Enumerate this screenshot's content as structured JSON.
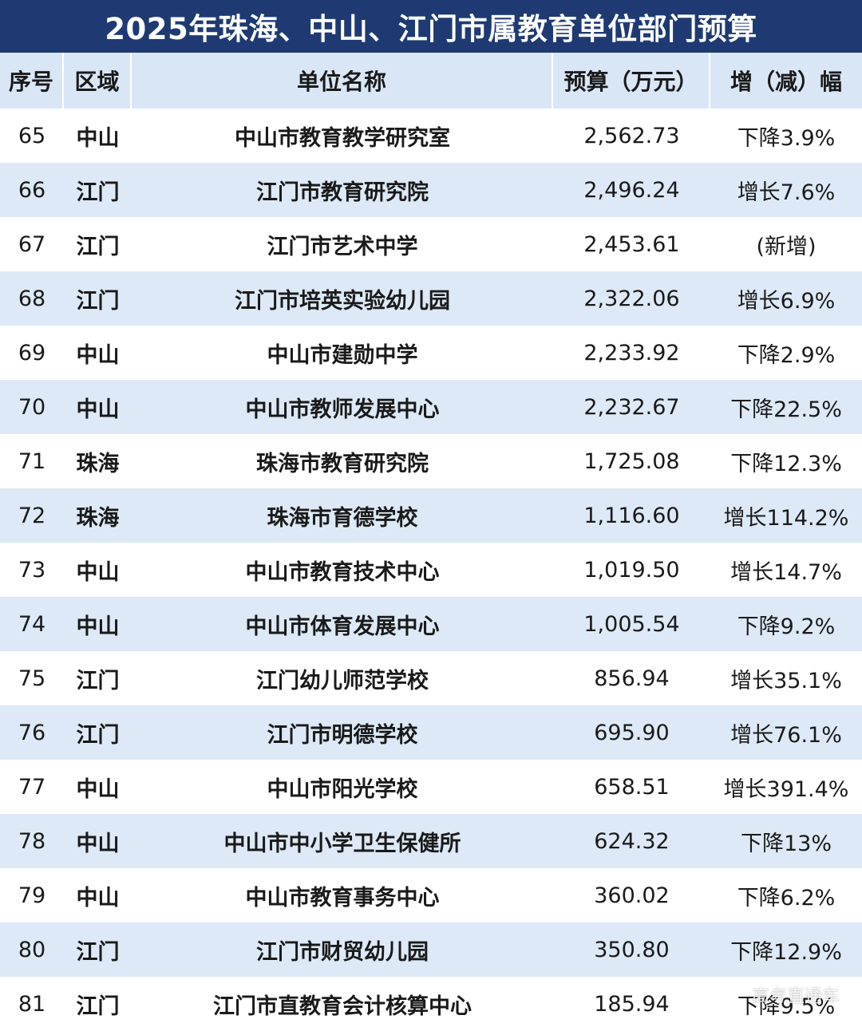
{
  "title": "2025年珠海、中山、江门市属教育单位部门预算",
  "columns": {
    "no": "序号",
    "area": "区域",
    "name": "单位名称",
    "budget": "预算（万元）",
    "change": "增（减）幅"
  },
  "rows": [
    {
      "no": "65",
      "area": "中山",
      "name": "中山市教育教学研究室",
      "budget": "2,562.73",
      "change": "下降3.9%"
    },
    {
      "no": "66",
      "area": "江门",
      "name": "江门市教育研究院",
      "budget": "2,496.24",
      "change": "增长7.6%"
    },
    {
      "no": "67",
      "area": "江门",
      "name": "江门市艺术中学",
      "budget": "2,453.61",
      "change": "(新增)"
    },
    {
      "no": "68",
      "area": "江门",
      "name": "江门市培英实验幼儿园",
      "budget": "2,322.06",
      "change": "增长6.9%"
    },
    {
      "no": "69",
      "area": "中山",
      "name": "中山市建勋中学",
      "budget": "2,233.92",
      "change": "下降2.9%"
    },
    {
      "no": "70",
      "area": "中山",
      "name": "中山市教师发展中心",
      "budget": "2,232.67",
      "change": "下降22.5%"
    },
    {
      "no": "71",
      "area": "珠海",
      "name": "珠海市教育研究院",
      "budget": "1,725.08",
      "change": "下降12.3%"
    },
    {
      "no": "72",
      "area": "珠海",
      "name": "珠海市育德学校",
      "budget": "1,116.60",
      "change": "增长114.2%"
    },
    {
      "no": "73",
      "area": "中山",
      "name": "中山市教育技术中心",
      "budget": "1,019.50",
      "change": "增长14.7%"
    },
    {
      "no": "74",
      "area": "中山",
      "name": "中山市体育发展中心",
      "budget": "1,005.54",
      "change": "下降9.2%"
    },
    {
      "no": "75",
      "area": "江门",
      "name": "江门幼儿师范学校",
      "budget": "856.94",
      "change": "增长35.1%"
    },
    {
      "no": "76",
      "area": "江门",
      "name": "江门市明德学校",
      "budget": "695.90",
      "change": "增长76.1%"
    },
    {
      "no": "77",
      "area": "中山",
      "name": "中山市阳光学校",
      "budget": "658.51",
      "change": "增长391.4%"
    },
    {
      "no": "78",
      "area": "中山",
      "name": "中山市中小学卫生保健所",
      "budget": "624.32",
      "change": "下降13%"
    },
    {
      "no": "79",
      "area": "中山",
      "name": "中山市教育事务中心",
      "budget": "360.02",
      "change": "下降6.2%"
    },
    {
      "no": "80",
      "area": "江门",
      "name": "江门市财贸幼儿园",
      "budget": "350.80",
      "change": "下降12.9%"
    },
    {
      "no": "81",
      "area": "江门",
      "name": "江门市直教育会计核算中心",
      "budget": "185.94",
      "change": "下降9.5%"
    }
  ],
  "watermark": "高考直通车",
  "colors": {
    "title_bg": "#1f3a73",
    "header_bg": "#d9e6f5",
    "row_alt_bg": "#dde9f6"
  }
}
